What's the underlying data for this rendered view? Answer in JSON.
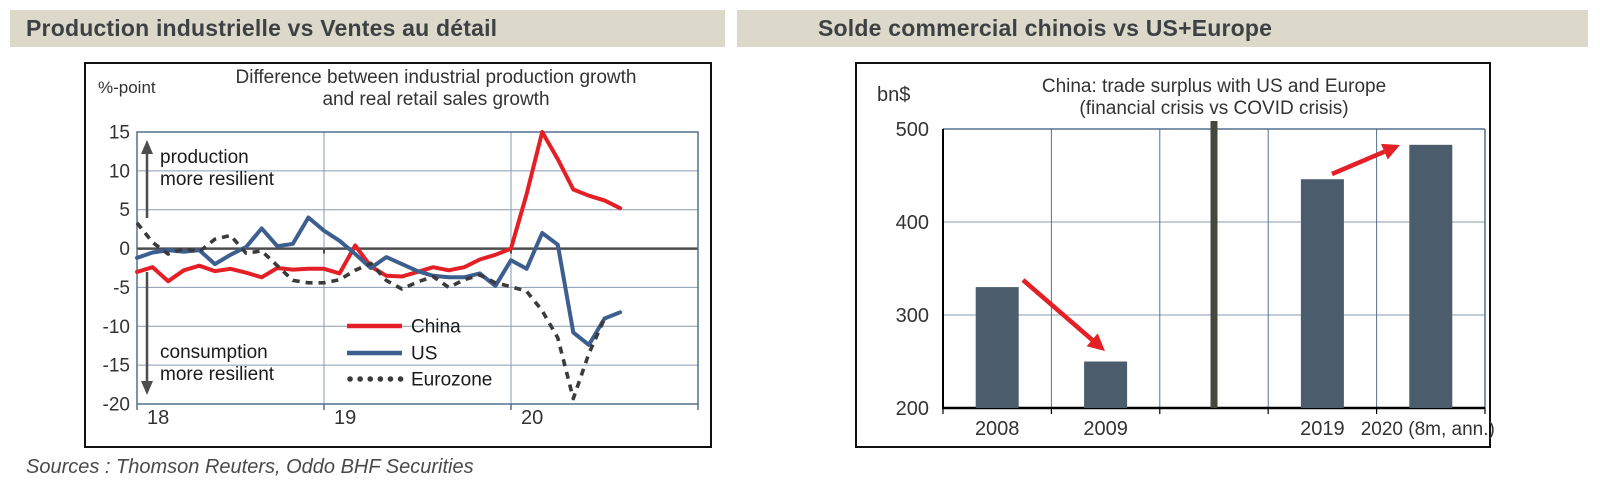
{
  "headers": {
    "left": "Production industrielle vs Ventes au détail",
    "right": "Solde commercial chinois vs US+Europe",
    "background": "#dcd9cb",
    "text_color": "#3d4144"
  },
  "source_note": "Sources : Thomson Reuters, Oddo BHF Securities",
  "colors": {
    "china_red": "#e41f26",
    "us_blue": "#3d5f90",
    "eurozone_dark": "#3b3b3b",
    "bar_slate": "#4b5c6d",
    "grid_slate": "#8a9ab0",
    "border_slate": "#54718f",
    "zero_axis": "#4d4d4d",
    "divider_olive": "#45483c",
    "arrow_red": "#e41f26"
  },
  "chart_data": [
    {
      "type": "line",
      "title_lines": [
        "Difference between industrial production growth",
        "and real retail sales growth"
      ],
      "unit_label": "%-point",
      "x_tick_labels": [
        "18",
        "19",
        "20"
      ],
      "x_range": [
        "2018-01",
        "2020-08"
      ],
      "ylim": [
        -20,
        15
      ],
      "y_ticks": [
        15,
        10,
        5,
        0,
        -5,
        -10,
        -15,
        -20
      ],
      "grid": true,
      "legend_position": "center",
      "annotation_top": [
        "production",
        "more resilient"
      ],
      "annotation_bottom": [
        "consumption",
        "more resilient"
      ],
      "legend": [
        {
          "label": "China",
          "color": "#e41f26",
          "dashed": false
        },
        {
          "label": "US",
          "color": "#3d5f90",
          "dashed": false
        },
        {
          "label": "Eurozone",
          "color": "#3b3b3b",
          "dashed": true
        }
      ],
      "series": [
        {
          "name": "China",
          "values": [
            -3.0,
            -2.4,
            -4.2,
            -2.8,
            -2.2,
            -2.9,
            -2.6,
            -3.1,
            -3.7,
            -2.5,
            -2.7,
            -2.6,
            -2.6,
            -3.2,
            0.4,
            -2.3,
            -3.5,
            -3.6,
            -3.0,
            -2.4,
            -2.8,
            -2.4,
            -1.4,
            -0.8,
            0.0,
            7.0,
            15.0,
            11.5,
            7.6,
            6.8,
            6.2,
            5.2
          ]
        },
        {
          "name": "US",
          "values": [
            -1.2,
            -0.5,
            -0.2,
            -0.4,
            -0.2,
            -2.0,
            -0.8,
            0.2,
            2.6,
            0.3,
            0.6,
            4.0,
            2.3,
            1.0,
            -0.7,
            -2.5,
            -1.1,
            -2.0,
            -2.9,
            -3.5,
            -3.7,
            -3.7,
            -3.2,
            -4.8,
            -1.5,
            -2.6,
            2.0,
            0.5,
            -10.8,
            -12.4,
            -9.0,
            -8.2
          ]
        },
        {
          "name": "Eurozone",
          "values": [
            3.3,
            0.8,
            -0.7,
            0.0,
            -0.4,
            1.2,
            1.7,
            -0.6,
            -0.3,
            -2.2,
            -4.1,
            -4.4,
            -4.4,
            -4.0,
            -2.8,
            -1.9,
            -4.1,
            -5.2,
            -4.3,
            -3.6,
            -5.0,
            -4.0,
            -3.4,
            -4.4,
            -4.9,
            -5.5,
            -8.0,
            -11.5,
            -19.3,
            -13.5,
            -9.0
          ]
        }
      ]
    },
    {
      "type": "bar",
      "title_lines": [
        "China: trade surplus with US and Europe",
        "(financial crisis vs COVID crisis)"
      ],
      "unit_label": "bn$",
      "categories": [
        "2008",
        "2009",
        "2019",
        "2020 (8m, ann.)"
      ],
      "values": [
        330,
        250,
        446,
        483
      ],
      "ylim": [
        200,
        500
      ],
      "y_ticks": [
        500,
        400,
        300,
        200
      ],
      "bar_color": "#4b5c6d",
      "divider_note": "vertical divider separates financial crisis (2008-2009) from COVID crisis (2019-2020)",
      "arrows": [
        {
          "direction": "down",
          "from": "2008",
          "to": "2009"
        },
        {
          "direction": "up",
          "from": "2019",
          "to": "2020 (8m, ann.)"
        }
      ]
    }
  ]
}
